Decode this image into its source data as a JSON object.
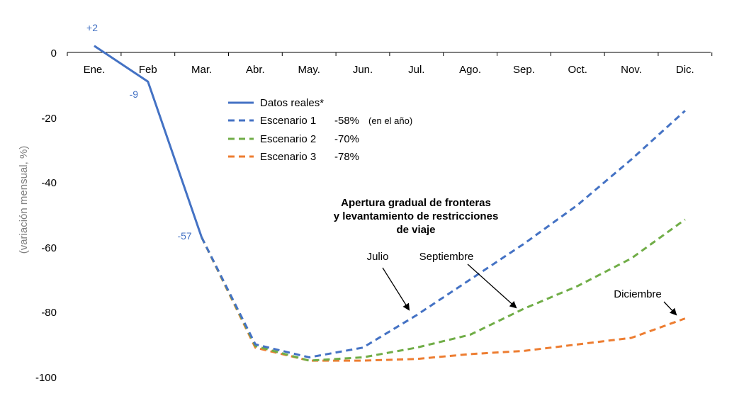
{
  "chart_data": {
    "type": "line",
    "ylabel": "(variación mensual, %)",
    "ylim": [
      -100,
      0
    ],
    "yticks": [
      "0",
      "-20",
      "-40",
      "-60",
      "-80",
      "-100"
    ],
    "categories": [
      "Ene.",
      "Feb",
      "Mar.",
      "Abr.",
      "May.",
      "Jun.",
      "Jul.",
      "Ago.",
      "Sep.",
      "Oct.",
      "Nov.",
      "Dic."
    ],
    "colors": {
      "blue": "#4472c4",
      "green": "#70ad47",
      "orange": "#ed7d31"
    },
    "series": [
      {
        "name": "Datos reales*",
        "values": [
          2,
          -9,
          -57,
          null,
          null,
          null,
          null,
          null,
          null,
          null,
          null,
          null
        ]
      },
      {
        "name": "Escenario 1",
        "values": [
          null,
          null,
          -57,
          -90,
          -94,
          -91,
          -81,
          -70,
          -59,
          -47,
          -33,
          -18
        ]
      },
      {
        "name": "Escenario 2",
        "values": [
          null,
          null,
          -57,
          -90.5,
          -95,
          -94,
          -91,
          -87,
          -79,
          -72,
          -63.5,
          -51.5
        ]
      },
      {
        "name": "Escenario 3",
        "values": [
          null,
          null,
          -57,
          -91,
          -95,
          -95,
          -94.5,
          -93,
          -92,
          -90,
          -88,
          -82
        ]
      }
    ],
    "data_labels": [
      {
        "text": "+2",
        "category": "Ene.",
        "value": 2
      },
      {
        "text": "-9",
        "category": "Feb",
        "value": -9
      },
      {
        "text": "-57",
        "category": "Mar.",
        "value": -57
      }
    ],
    "legend": {
      "placement": "center",
      "items": [
        {
          "label": "Datos reales*",
          "pct": "",
          "note": ""
        },
        {
          "label": "Escenario 1",
          "pct": "-58%",
          "note": "(en el año)"
        },
        {
          "label": "Escenario 2",
          "pct": "-70%",
          "note": ""
        },
        {
          "label": "Escenario 3",
          "pct": "-78%",
          "note": ""
        }
      ]
    },
    "annotations": {
      "title_lines": [
        "Apertura gradual de fronteras",
        "y levantamiento de restricciones",
        "de viaje"
      ],
      "julio": "Julio",
      "septiembre": "Septiembre",
      "diciembre": "Diciembre"
    }
  }
}
